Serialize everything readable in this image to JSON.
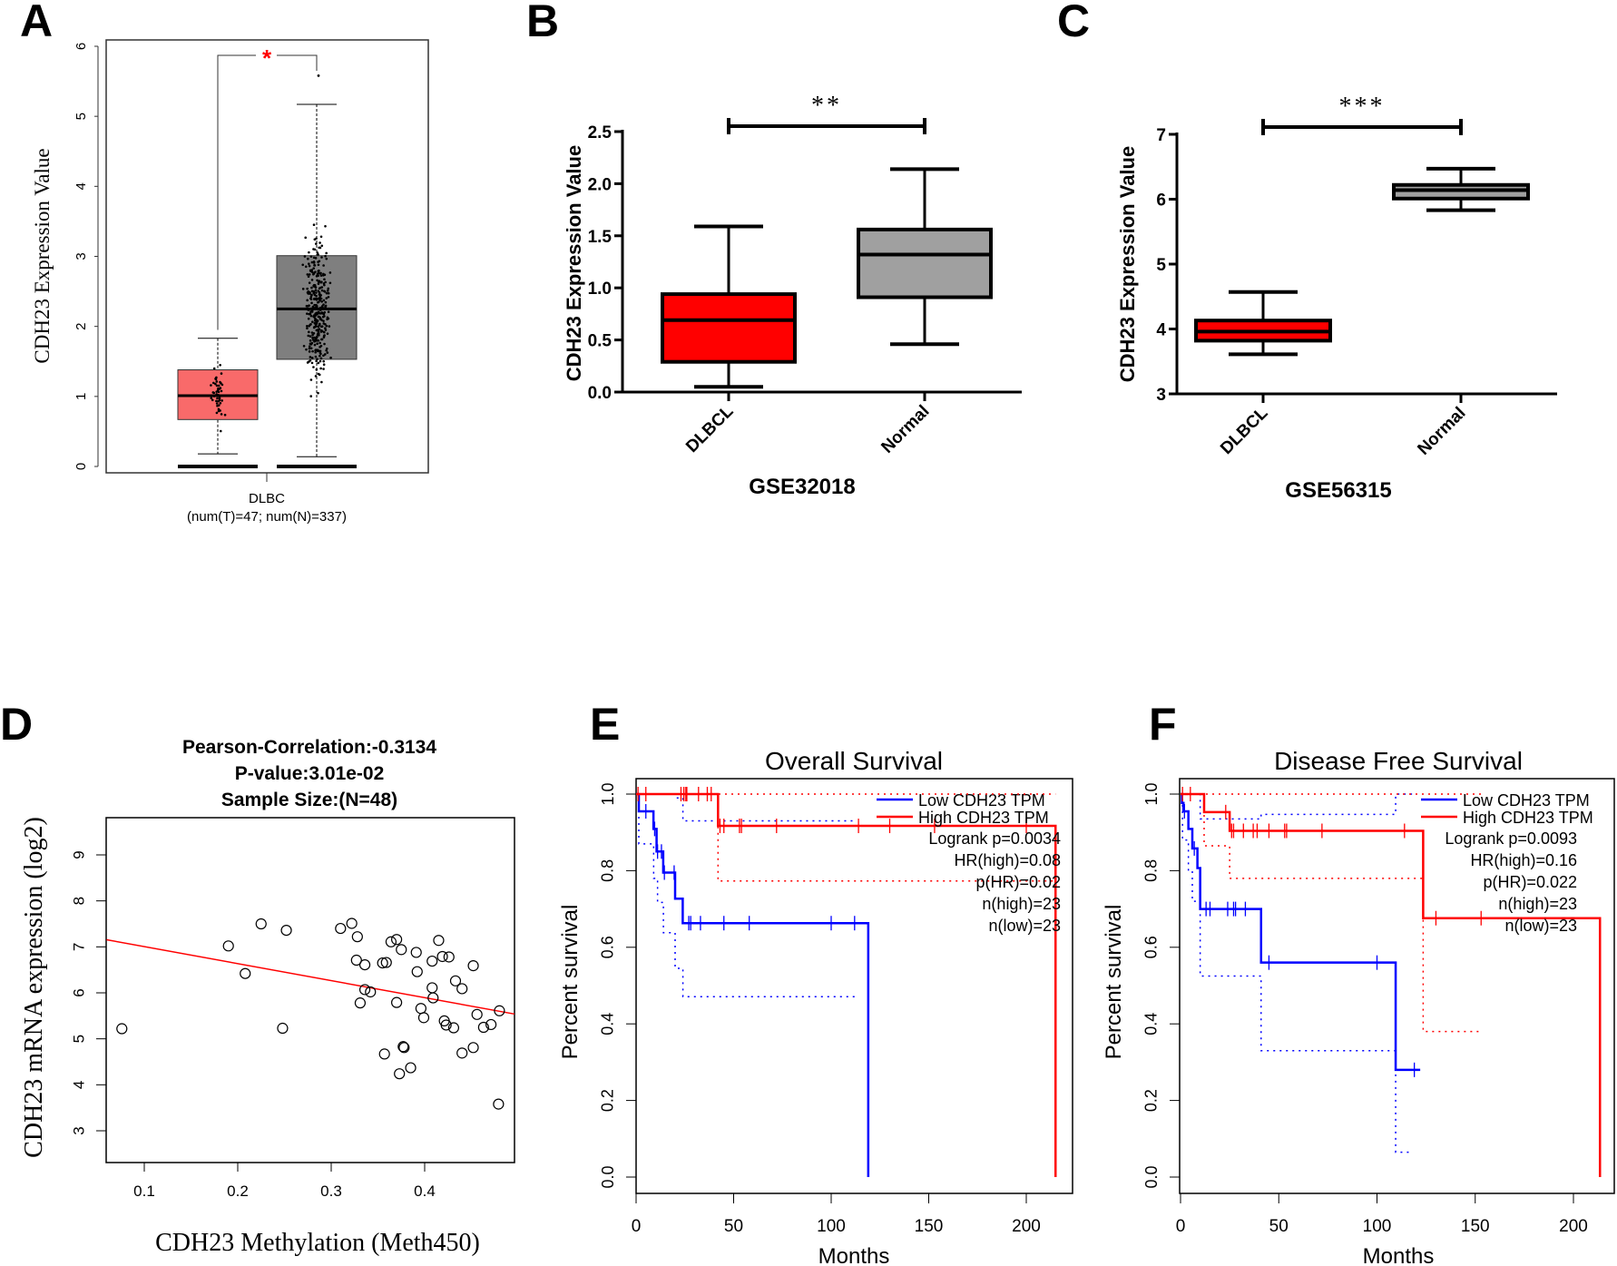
{
  "panel_letters": {
    "A": "A",
    "B": "B",
    "C": "C",
    "D": "D",
    "E": "E",
    "F": "F"
  },
  "chart_data": [
    {
      "panel": "A",
      "type": "box",
      "ylabel": "CDH23 Expression Value",
      "ylim": [
        0,
        6
      ],
      "yticks": [
        "0",
        "1",
        "2",
        "3",
        "4",
        "5",
        "6"
      ],
      "xlabel": "DLBC",
      "xsublabel": "(num(T)=47; num(N)=337)",
      "significance": "*",
      "significance_color": "#ff0000",
      "boxes": [
        {
          "fill": "#f96a6a",
          "n": 47,
          "min": 0.18,
          "q1": 0.67,
          "median": 1.01,
          "q3": 1.38,
          "max": 1.83,
          "outliers": [],
          "zero_line": 0
        },
        {
          "fill": "#7f7f7f",
          "n": 337,
          "min": 0.14,
          "q1": 1.53,
          "median": 2.25,
          "q3": 3.01,
          "max": 5.17,
          "outliers": [
            5.58
          ],
          "zero_line": 0
        }
      ]
    },
    {
      "panel": "B",
      "type": "box",
      "ylabel": "CDH23 Expression Value",
      "ylim": [
        0,
        2.5
      ],
      "yticks": [
        "0.0",
        "0.5",
        "1.0",
        "1.5",
        "2.0",
        "2.5"
      ],
      "categories": [
        "DLBCL",
        "Normal"
      ],
      "xlabel": "GSE32018",
      "significance": "**",
      "boxes": [
        {
          "fill": "#ff0000",
          "min": 0.05,
          "q1": 0.29,
          "median": 0.69,
          "q3": 0.94,
          "max": 1.59
        },
        {
          "fill": "#a0a0a0",
          "min": 0.46,
          "q1": 0.91,
          "median": 1.32,
          "q3": 1.56,
          "max": 2.14
        }
      ]
    },
    {
      "panel": "C",
      "type": "box",
      "ylabel": "CDH23 Expression Value",
      "ylim": [
        3,
        7
      ],
      "yticks": [
        "3",
        "4",
        "5",
        "6",
        "7"
      ],
      "categories": [
        "DLBCL",
        "Normal"
      ],
      "xlabel": "GSE56315",
      "significance": "***",
      "boxes": [
        {
          "fill": "#ff0000",
          "min": 3.61,
          "q1": 3.82,
          "median": 3.96,
          "q3": 4.13,
          "max": 4.57
        },
        {
          "fill": "#a0a0a0",
          "min": 5.83,
          "q1": 6.01,
          "median": 6.14,
          "q3": 6.22,
          "max": 6.47
        }
      ]
    },
    {
      "panel": "D",
      "type": "scatter",
      "title_lines": [
        "Pearson-Correlation:-0.3134",
        "P-value:3.01e-02",
        "Sample Size:(N=48)"
      ],
      "xlabel": "CDH23 Methylation (Meth450)",
      "ylabel": "CDH23 mRNA expression (log2)",
      "xlim": [
        0.06,
        0.496
      ],
      "ylim": [
        2.3,
        9.78
      ],
      "xticks": [
        "0.1",
        "0.2",
        "0.3",
        "0.4"
      ],
      "yticks": [
        "3",
        "4",
        "5",
        "6",
        "7",
        "8",
        "9"
      ],
      "fit_line": {
        "color": "#ff0000",
        "points": [
          [
            0.0596,
            7.155
          ],
          [
            0.496,
            5.54
          ]
        ]
      },
      "points": [
        [
          0.076,
          5.22
        ],
        [
          0.19,
          7.02
        ],
        [
          0.208,
          6.42
        ],
        [
          0.225,
          7.5
        ],
        [
          0.252,
          7.36
        ],
        [
          0.248,
          5.23
        ],
        [
          0.31,
          7.4
        ],
        [
          0.322,
          7.51
        ],
        [
          0.328,
          7.22
        ],
        [
          0.327,
          6.71
        ],
        [
          0.336,
          6.61
        ],
        [
          0.336,
          6.07
        ],
        [
          0.342,
          6.02
        ],
        [
          0.331,
          5.78
        ],
        [
          0.355,
          6.65
        ],
        [
          0.359,
          6.66
        ],
        [
          0.364,
          7.11
        ],
        [
          0.37,
          7.16
        ],
        [
          0.375,
          6.94
        ],
        [
          0.37,
          5.79
        ],
        [
          0.357,
          4.67
        ],
        [
          0.373,
          4.24
        ],
        [
          0.377,
          4.83
        ],
        [
          0.378,
          4.81
        ],
        [
          0.385,
          4.37
        ],
        [
          0.391,
          6.88
        ],
        [
          0.392,
          6.46
        ],
        [
          0.396,
          5.66
        ],
        [
          0.399,
          5.46
        ],
        [
          0.408,
          6.69
        ],
        [
          0.408,
          6.11
        ],
        [
          0.409,
          5.89
        ],
        [
          0.415,
          7.14
        ],
        [
          0.419,
          6.79
        ],
        [
          0.426,
          6.78
        ],
        [
          0.421,
          5.39
        ],
        [
          0.423,
          5.3
        ],
        [
          0.431,
          5.24
        ],
        [
          0.433,
          6.26
        ],
        [
          0.44,
          6.09
        ],
        [
          0.44,
          4.69
        ],
        [
          0.452,
          6.59
        ],
        [
          0.456,
          5.53
        ],
        [
          0.452,
          4.81
        ],
        [
          0.463,
          5.25
        ],
        [
          0.471,
          5.31
        ],
        [
          0.48,
          5.61
        ],
        [
          0.479,
          3.58
        ]
      ]
    },
    {
      "panel": "E",
      "type": "line",
      "title": "Overall Survival",
      "xlabel": "Months",
      "ylabel": "Percent survival",
      "xlim": [
        0,
        224
      ],
      "ylim": [
        -0.04,
        1.04
      ],
      "xticks": [
        "0",
        "50",
        "100",
        "150",
        "200"
      ],
      "yticks": [
        "0.0",
        "0.2",
        "0.4",
        "0.6",
        "0.8",
        "1.0"
      ],
      "legend": "top-right",
      "stats": [
        "Logrank p=0.0034",
        "HR(high)=0.08",
        "p(HR)=0.02",
        "n(high)=23",
        "n(low)=23"
      ],
      "series": [
        {
          "name": "Low CDH23 TPM",
          "color": "#0000ff",
          "steps": [
            [
              0,
              1
            ],
            [
              1.4,
              0.955
            ],
            [
              8.9,
              0.909
            ],
            [
              10.5,
              0.85
            ],
            [
              13.9,
              0.795
            ],
            [
              20,
              0.727
            ],
            [
              23.9,
              0.663
            ],
            [
              119,
              0
            ]
          ],
          "censored": [
            5,
            9.5,
            11,
            13,
            14.5,
            19.5,
            27,
            28,
            33,
            45,
            58,
            100,
            112
          ],
          "ci_upper": [
            [
              0,
              1
            ],
            [
              20,
              0.99
            ],
            [
              24,
              0.93
            ],
            [
              112,
              0.93
            ]
          ],
          "ci_lower": [
            [
              0,
              1
            ],
            [
              1.4,
              0.87
            ],
            [
              9,
              0.78
            ],
            [
              11,
              0.717
            ],
            [
              14,
              0.638
            ],
            [
              20,
              0.545
            ],
            [
              24,
              0.471
            ],
            [
              112,
              0.471
            ]
          ]
        },
        {
          "name": "High CDH23 TPM",
          "color": "#ff0000",
          "steps": [
            [
              0,
              1
            ],
            [
              42,
              0.917
            ],
            [
              215,
              0
            ]
          ],
          "censored": [
            1,
            5,
            23,
            24.5,
            25.5,
            26,
            32,
            36.5,
            38.5,
            43,
            45,
            53,
            54,
            72,
            114,
            130,
            153,
            200
          ],
          "ci_upper": [
            [
              0,
              1
            ],
            [
              215,
              1
            ]
          ],
          "ci_lower": [
            [
              0,
              1
            ],
            [
              42,
              0.773
            ],
            [
              215,
              0.773
            ]
          ]
        }
      ]
    },
    {
      "panel": "F",
      "type": "line",
      "title": "Disease Free Survival",
      "xlabel": "Months",
      "ylabel": "Percent survival",
      "xlim": [
        0,
        221
      ],
      "ylim": [
        -0.04,
        1.04
      ],
      "xticks": [
        "0",
        "50",
        "100",
        "150",
        "200"
      ],
      "yticks": [
        "0.0",
        "0.2",
        "0.4",
        "0.6",
        "0.8",
        "1.0"
      ],
      "legend": "top-right",
      "stats": [
        "Logrank p=0.0093",
        "HR(high)=0.16",
        "p(HR)=0.022",
        "n(high)=23",
        "n(low)=23"
      ],
      "series": [
        {
          "name": "Low CDH23 TPM",
          "color": "#0000ff",
          "steps": [
            [
              0,
              1
            ],
            [
              0.7,
              0.977
            ],
            [
              1.5,
              0.955
            ],
            [
              4,
              0.909
            ],
            [
              6,
              0.858
            ],
            [
              8.6,
              0.807
            ],
            [
              10,
              0.7
            ],
            [
              41,
              0.56
            ],
            [
              109.5,
              0.28
            ],
            [
              122,
              0.28
            ]
          ],
          "censored": [
            2,
            7,
            13,
            15,
            24,
            27,
            28,
            33,
            45,
            100,
            119
          ],
          "ci_upper": [
            [
              0,
              1
            ],
            [
              10,
              0.935
            ],
            [
              41,
              0.947
            ],
            [
              109.5,
              1
            ],
            [
              119,
              1
            ]
          ],
          "ci_lower": [
            [
              0,
              1
            ],
            [
              1,
              0.88
            ],
            [
              4,
              0.8
            ],
            [
              6,
              0.72
            ],
            [
              10,
              0.525
            ],
            [
              41,
              0.33
            ],
            [
              109.5,
              0.065
            ],
            [
              118,
              0.065
            ]
          ]
        },
        {
          "name": "High CDH23 TPM",
          "color": "#ff0000",
          "steps": [
            [
              0,
              1
            ],
            [
              12,
              0.953
            ],
            [
              25,
              0.904
            ],
            [
              123.5,
              0.676
            ],
            [
              213.5,
              0
            ]
          ],
          "censored": [
            1,
            5,
            23,
            26,
            27,
            32,
            37,
            39,
            45,
            53,
            54,
            72,
            114,
            130,
            153
          ],
          "ci_upper": [
            [
              0,
              1
            ],
            [
              153,
              1
            ]
          ],
          "ci_lower": [
            [
              0,
              1
            ],
            [
              12,
              0.865
            ],
            [
              25,
              0.78
            ],
            [
              123.5,
              0.38
            ],
            [
              153,
              0.38
            ]
          ]
        }
      ]
    }
  ]
}
